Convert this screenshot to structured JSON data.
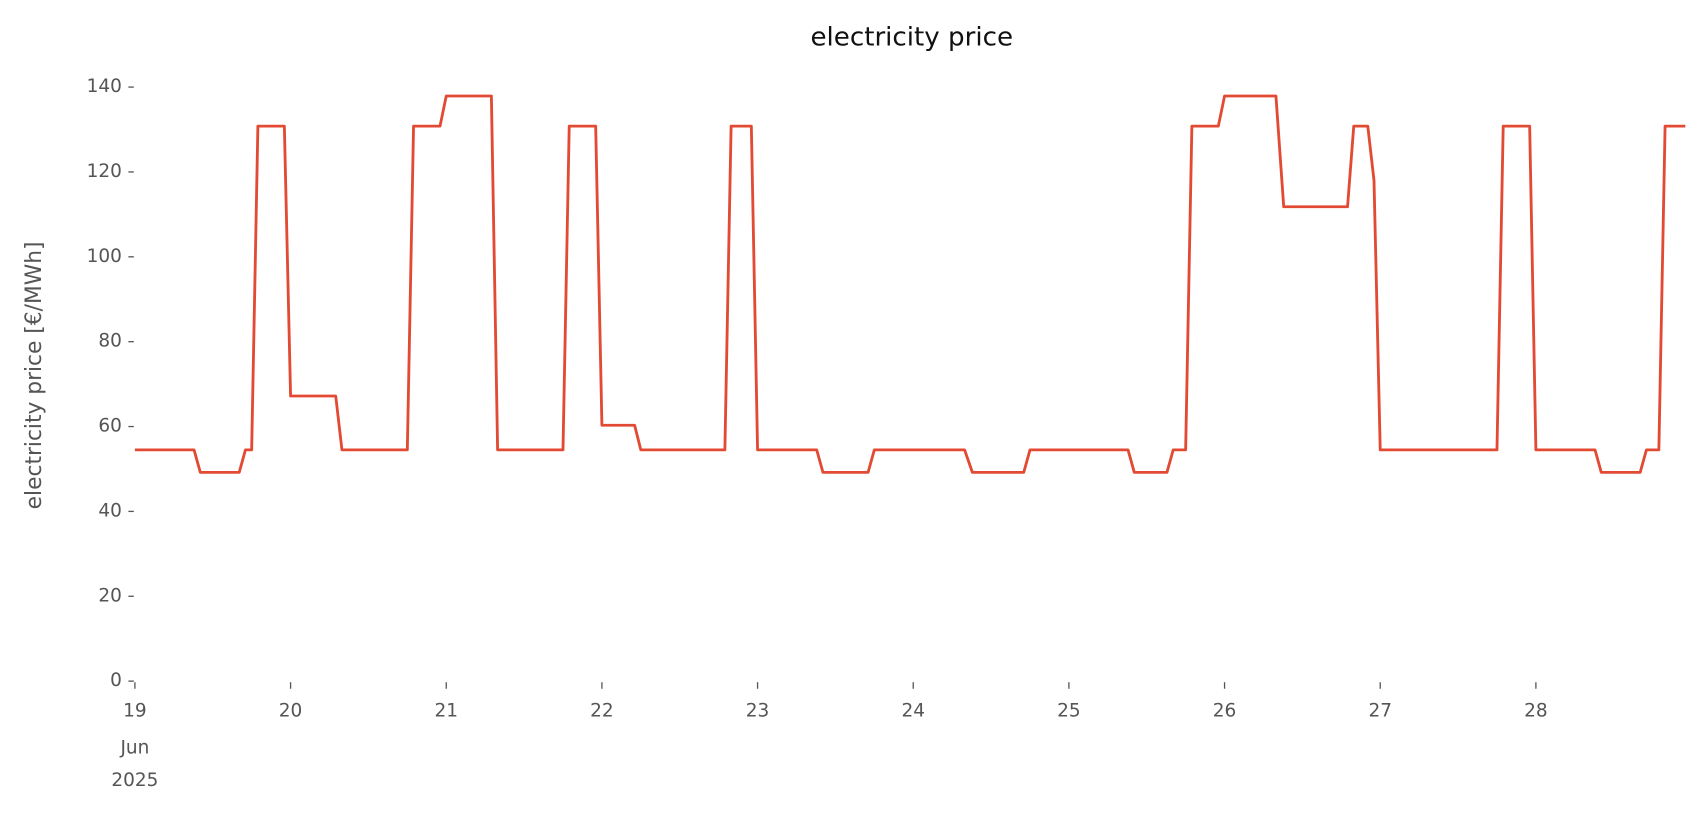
{
  "chart_data": {
    "type": "line",
    "title": "electricity price",
    "ylabel": "electricity price [€/MWh]",
    "x": [
      0,
      0.38,
      0.42,
      0.67,
      0.71,
      0.75,
      0.79,
      0.96,
      1.0,
      1.29,
      1.33,
      1.75,
      1.79,
      1.96,
      2.0,
      2.29,
      2.33,
      2.75,
      2.79,
      2.96,
      3.0,
      3.21,
      3.25,
      3.79,
      3.83,
      3.96,
      4.0,
      4.38,
      4.42,
      4.71,
      4.75,
      5.33,
      5.38,
      5.71,
      5.75,
      6.38,
      6.42,
      6.63,
      6.67,
      6.75,
      6.79,
      6.96,
      7.0,
      7.33,
      7.38,
      7.79,
      7.83,
      7.92,
      7.96,
      8.0,
      8.75,
      8.79,
      8.96,
      9.0,
      9.38,
      9.42,
      9.67,
      9.71,
      9.79,
      9.83,
      9.96
    ],
    "series": [
      {
        "name": "electricity price",
        "color": "#e24a33",
        "values": [
          54.5,
          54.5,
          49.2,
          49.2,
          54.5,
          54.5,
          130.8,
          130.8,
          67.2,
          67.2,
          54.5,
          54.5,
          130.8,
          130.8,
          137.9,
          137.9,
          54.5,
          54.5,
          130.8,
          130.8,
          60.3,
          60.3,
          54.5,
          54.5,
          130.8,
          130.8,
          54.5,
          54.5,
          49.2,
          49.2,
          54.5,
          54.5,
          49.2,
          49.2,
          54.5,
          54.5,
          49.2,
          49.2,
          54.5,
          54.5,
          130.8,
          130.8,
          137.9,
          137.9,
          111.8,
          111.8,
          130.8,
          130.8,
          118,
          54.5,
          54.5,
          130.8,
          130.8,
          54.5,
          54.5,
          49.2,
          49.2,
          54.5,
          54.5,
          130.8,
          130.8
        ]
      }
    ],
    "xlim": [
      0,
      9.96
    ],
    "xticks": [
      {
        "value": 0,
        "label": "19"
      },
      {
        "value": 1,
        "label": "20"
      },
      {
        "value": 2,
        "label": "21"
      },
      {
        "value": 3,
        "label": "22"
      },
      {
        "value": 4,
        "label": "23"
      },
      {
        "value": 5,
        "label": "24"
      },
      {
        "value": 6,
        "label": "25"
      },
      {
        "value": 7,
        "label": "26"
      },
      {
        "value": 8,
        "label": "27"
      },
      {
        "value": 9,
        "label": "28"
      }
    ],
    "x_tick_sublabels": [
      "Jun",
      "2025"
    ],
    "ylim": [
      0,
      140
    ],
    "yticks": [
      0,
      20,
      40,
      60,
      80,
      100,
      120,
      140
    ],
    "grid": false
  }
}
